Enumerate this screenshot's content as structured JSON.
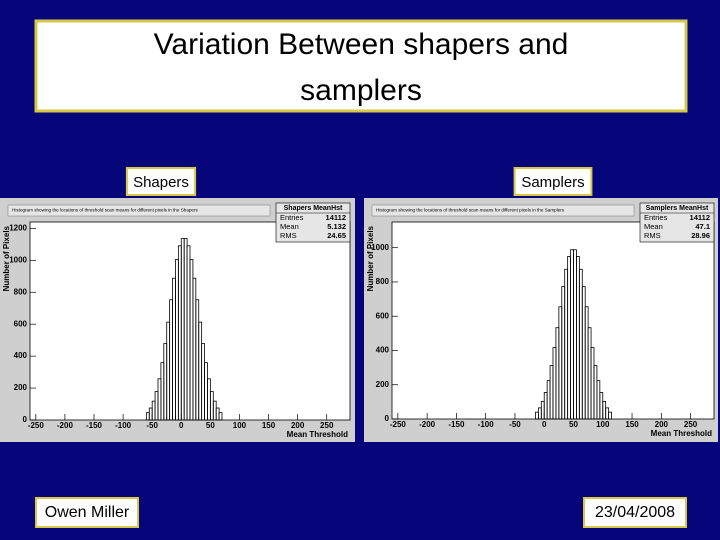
{
  "title": "Variation Between shapers and samplers",
  "footer": {
    "author": "Owen Miller",
    "date": "23/04/2008"
  },
  "chart_data": [
    {
      "type": "histogram",
      "label": "Shapers",
      "title": "Histogram showing the locations of threshold scan means for different pixels in the Shapers",
      "stats_name": "Shapers MeanHst",
      "stats": [
        {
          "label": "Entries",
          "value": 14112
        },
        {
          "label": "Mean",
          "value": 5.132
        },
        {
          "label": "RMS",
          "value": 24.65
        }
      ],
      "xlabel": "Mean Threshold",
      "ylabel": "Number of Pixels",
      "bins": [
        -60,
        -55,
        -50,
        -45,
        -40,
        -35,
        -30,
        -25,
        -20,
        -15,
        -10,
        -5,
        0,
        5,
        10,
        15,
        20,
        25,
        30,
        35,
        40,
        45,
        50,
        55,
        60,
        65,
        70
      ],
      "counts": [
        46,
        75,
        118,
        178,
        258,
        359,
        479,
        613,
        753,
        888,
        1005,
        1091,
        1136,
        1136,
        1091,
        1005,
        888,
        753,
        613,
        479,
        359,
        258,
        178,
        118,
        75,
        46
      ],
      "color": "#000000",
      "xlim": [
        -260,
        290
      ],
      "xticks": [
        -250,
        -200,
        -150,
        -100,
        -50,
        0,
        50,
        100,
        150,
        200,
        250
      ],
      "ylim": [
        0,
        1240
      ],
      "yticks": [
        0,
        200,
        400,
        600,
        800,
        1000,
        1200
      ]
    },
    {
      "type": "histogram",
      "label": "Samplers",
      "title": "Histogram showing the locations of threshold scan means for different pixels in the Samplers",
      "stats_name": "Samplers MeanHst",
      "stats": [
        {
          "label": "Entries",
          "value": 14112
        },
        {
          "label": "Mean",
          "value": 47.1
        },
        {
          "label": "RMS",
          "value": 28.96
        }
      ],
      "xlabel": "Mean Threshold",
      "ylabel": "Number of Pixels",
      "bins": [
        -15,
        -10,
        -5,
        0,
        5,
        10,
        15,
        20,
        25,
        30,
        35,
        40,
        45,
        50,
        55,
        60,
        65,
        70,
        75,
        80,
        85,
        90,
        95,
        100,
        105,
        110,
        115
      ],
      "counts": [
        40,
        65,
        103,
        155,
        224,
        312,
        417,
        533,
        655,
        773,
        874,
        949,
        988,
        988,
        949,
        874,
        773,
        655,
        533,
        417,
        312,
        224,
        155,
        103,
        65,
        40
      ],
      "color": "#000000",
      "xlim": [
        -260,
        290
      ],
      "xticks": [
        -250,
        -200,
        -150,
        -100,
        -50,
        0,
        50,
        100,
        150,
        200,
        250
      ],
      "ylim": [
        0,
        1150
      ],
      "yticks": [
        0,
        200,
        400,
        600,
        800,
        1000
      ]
    }
  ]
}
